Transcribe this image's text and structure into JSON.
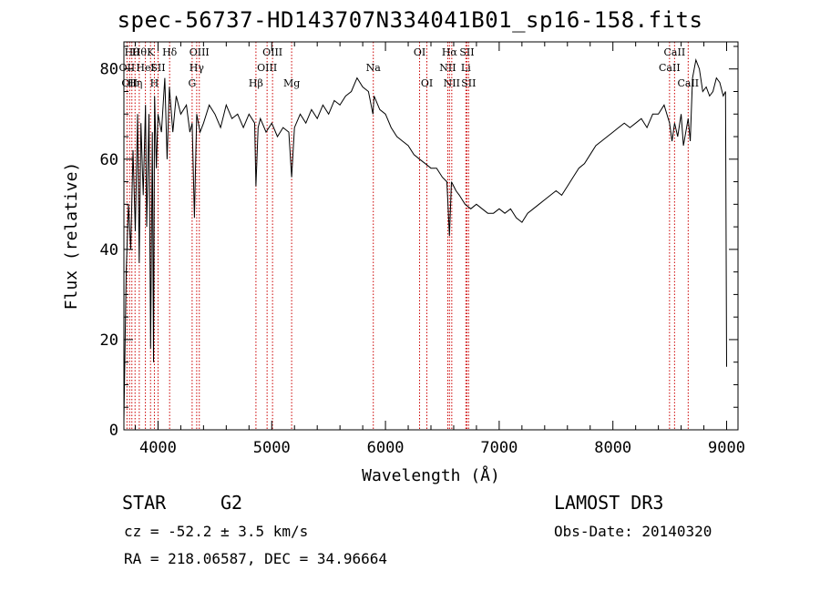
{
  "chart_data": {
    "type": "line",
    "title": "spec-56737-HD143707N334041B01_sp16-158.fits",
    "xlabel": "Wavelength (Å)",
    "ylabel": "Flux (relative)",
    "xlim": [
      3700,
      9100
    ],
    "ylim": [
      0,
      86
    ],
    "xticks": [
      4000,
      5000,
      6000,
      7000,
      8000,
      9000
    ],
    "yticks": [
      0,
      20,
      40,
      60,
      80
    ],
    "grid": false,
    "line_color": "#000000",
    "marker_color": "#cc0000",
    "series": [
      {
        "x": [
          3700,
          3720,
          3740,
          3760,
          3780,
          3800,
          3820,
          3835,
          3850,
          3870,
          3890,
          3900,
          3920,
          3935,
          3950,
          3960,
          3970,
          3985,
          4000,
          4030,
          4060,
          4080,
          4100,
          4130,
          4160,
          4200,
          4250,
          4280,
          4300,
          4320,
          4340,
          4370,
          4400,
          4450,
          4500,
          4550,
          4600,
          4650,
          4700,
          4750,
          4800,
          4850,
          4861,
          4880,
          4900,
          4950,
          5000,
          5050,
          5100,
          5150,
          5175,
          5200,
          5250,
          5300,
          5350,
          5400,
          5450,
          5500,
          5550,
          5600,
          5650,
          5700,
          5750,
          5800,
          5850,
          5890,
          5900,
          5950,
          6000,
          6050,
          6100,
          6150,
          6200,
          6250,
          6300,
          6350,
          6400,
          6450,
          6500,
          6540,
          6563,
          6580,
          6620,
          6650,
          6700,
          6750,
          6800,
          6850,
          6900,
          6950,
          7000,
          7050,
          7100,
          7150,
          7200,
          7250,
          7300,
          7350,
          7400,
          7450,
          7500,
          7550,
          7600,
          7650,
          7700,
          7750,
          7800,
          7850,
          7900,
          7950,
          8000,
          8050,
          8100,
          8150,
          8200,
          8250,
          8300,
          8350,
          8400,
          8450,
          8498,
          8520,
          8542,
          8570,
          8600,
          8620,
          8662,
          8680,
          8700,
          8730,
          8760,
          8790,
          8820,
          8850,
          8880,
          8910,
          8940,
          8970,
          8990,
          9000
        ],
        "y": [
          2,
          35,
          50,
          40,
          62,
          44,
          70,
          37,
          68,
          52,
          72,
          45,
          70,
          18,
          66,
          15,
          74,
          58,
          70,
          66,
          78,
          60,
          76,
          66,
          74,
          70,
          72,
          66,
          68,
          47,
          70,
          66,
          68,
          72,
          70,
          67,
          72,
          69,
          70,
          67,
          70,
          68,
          54,
          67,
          69,
          66,
          68,
          65,
          67,
          66,
          56,
          67,
          70,
          68,
          71,
          69,
          72,
          70,
          73,
          72,
          74,
          75,
          78,
          76,
          75,
          70,
          74,
          71,
          70,
          67,
          65,
          64,
          63,
          61,
          60,
          59,
          58,
          58,
          56,
          55,
          43,
          55,
          53,
          52,
          50,
          49,
          50,
          49,
          48,
          48,
          49,
          48,
          49,
          47,
          46,
          48,
          49,
          50,
          51,
          52,
          53,
          52,
          54,
          56,
          58,
          59,
          61,
          63,
          64,
          65,
          66,
          67,
          68,
          67,
          68,
          69,
          67,
          70,
          70,
          72,
          68,
          64,
          68,
          65,
          70,
          63,
          69,
          64,
          78,
          82,
          80,
          75,
          76,
          74,
          75,
          78,
          77,
          74,
          75,
          14
        ]
      }
    ],
    "lines": [
      {
        "w": 3727,
        "label": "OII",
        "row": 1
      },
      {
        "w": 3750,
        "label": "OII",
        "row": 2
      },
      {
        "w": 3770,
        "label": "Hθ",
        "row": 0
      },
      {
        "w": 3798,
        "label": "Hη",
        "row": 2
      },
      {
        "w": 3835,
        "label": "Hθ",
        "row": 0
      },
      {
        "w": 3889,
        "label": "HeI",
        "row": 1
      },
      {
        "w": 3934,
        "label": "K",
        "row": 0
      },
      {
        "w": 3968,
        "label": "H",
        "row": 2
      },
      {
        "w": 4000,
        "label": "SII",
        "row": 1
      },
      {
        "w": 4102,
        "label": "Hδ",
        "row": 0
      },
      {
        "w": 4300,
        "label": "G",
        "row": 2
      },
      {
        "w": 4340,
        "label": "Hγ",
        "row": 1
      },
      {
        "w": 4363,
        "label": "OIII",
        "row": 0
      },
      {
        "w": 4861,
        "label": "Hβ",
        "row": 2
      },
      {
        "w": 4959,
        "label": "OIII",
        "row": 1
      },
      {
        "w": 5007,
        "label": "OIII",
        "row": 0
      },
      {
        "w": 5175,
        "label": "Mg",
        "row": 2
      },
      {
        "w": 5893,
        "label": "Na",
        "row": 1
      },
      {
        "w": 6300,
        "label": "OI",
        "row": 0
      },
      {
        "w": 6364,
        "label": "OI",
        "row": 2
      },
      {
        "w": 6548,
        "label": "NII",
        "row": 1
      },
      {
        "w": 6563,
        "label": "Hα",
        "row": 0
      },
      {
        "w": 6583,
        "label": "NII",
        "row": 2
      },
      {
        "w": 6707,
        "label": "Li",
        "row": 1
      },
      {
        "w": 6716,
        "label": "SII",
        "row": 0
      },
      {
        "w": 6731,
        "label": "SII",
        "row": 2
      },
      {
        "w": 8498,
        "label": "CaII",
        "row": 1
      },
      {
        "w": 8542,
        "label": "CaII",
        "row": 0
      },
      {
        "w": 8662,
        "label": "CaII",
        "row": 2
      }
    ]
  },
  "info": {
    "object_class": "STAR",
    "subclass": "G2",
    "cz": "cz = -52.2 ± 3.5 km/s",
    "coords": "RA = 218.06587, DEC =  34.96664",
    "survey": "LAMOST DR3",
    "obs_date": "Obs-Date: 20140320"
  }
}
